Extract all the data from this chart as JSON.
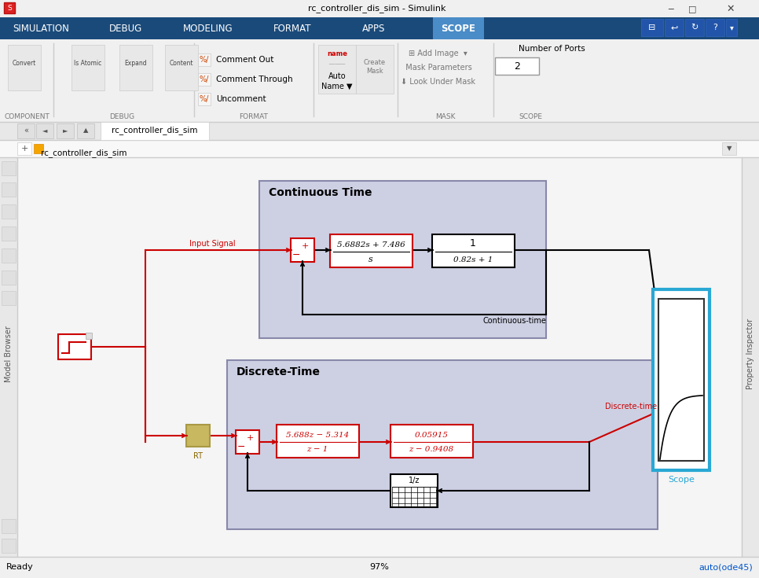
{
  "title_bar": "rc_controller_dis_sim - Simulink",
  "bg_color": "#f0f0f0",
  "menu_bar_color": "#1a4a7a",
  "menu_items": [
    "SIMULATION",
    "DEBUG",
    "MODELING",
    "FORMAT",
    "APPS",
    "SCOPE"
  ],
  "active_tab": "SCOPE",
  "canvas_bg": "#f5f5f5",
  "subsystem_bg": "#cdd0e3",
  "subsystem_border": "#9999bb",
  "continuous_title": "Continuous Time",
  "discrete_title": "Discrete-Time",
  "ct_controller_num": "5.6882s + 7.486",
  "ct_controller_den": "s",
  "ct_plant_num": "1",
  "ct_plant_den": "0.82s + 1",
  "dt_controller_num": "5.688z − 5.314",
  "dt_controller_den": "z − 1",
  "dt_plant_num": "0.05915",
  "dt_plant_den": "z − 0.9408",
  "input_signal_label": "Input Signal",
  "ct_label": "Continuous-time",
  "dt_label": "Discrete-time",
  "scope_label": "Scope",
  "rt_label": "RT",
  "status_left": "Ready",
  "status_center": "97%",
  "status_right": "auto(ode45)",
  "red": "#cc0000",
  "black": "#000000",
  "blue_scope": "#29a8d4",
  "toolbar_section_labels": [
    "COMPONENT",
    "DEBUG",
    "FORMAT",
    "MASK",
    "SCOPE"
  ],
  "number_of_ports_label": "Number of Ports",
  "number_of_ports_value": "2",
  "breadcrumb": "rc_controller_dis_sim",
  "tab_label": "rc_controller_dis_sim"
}
